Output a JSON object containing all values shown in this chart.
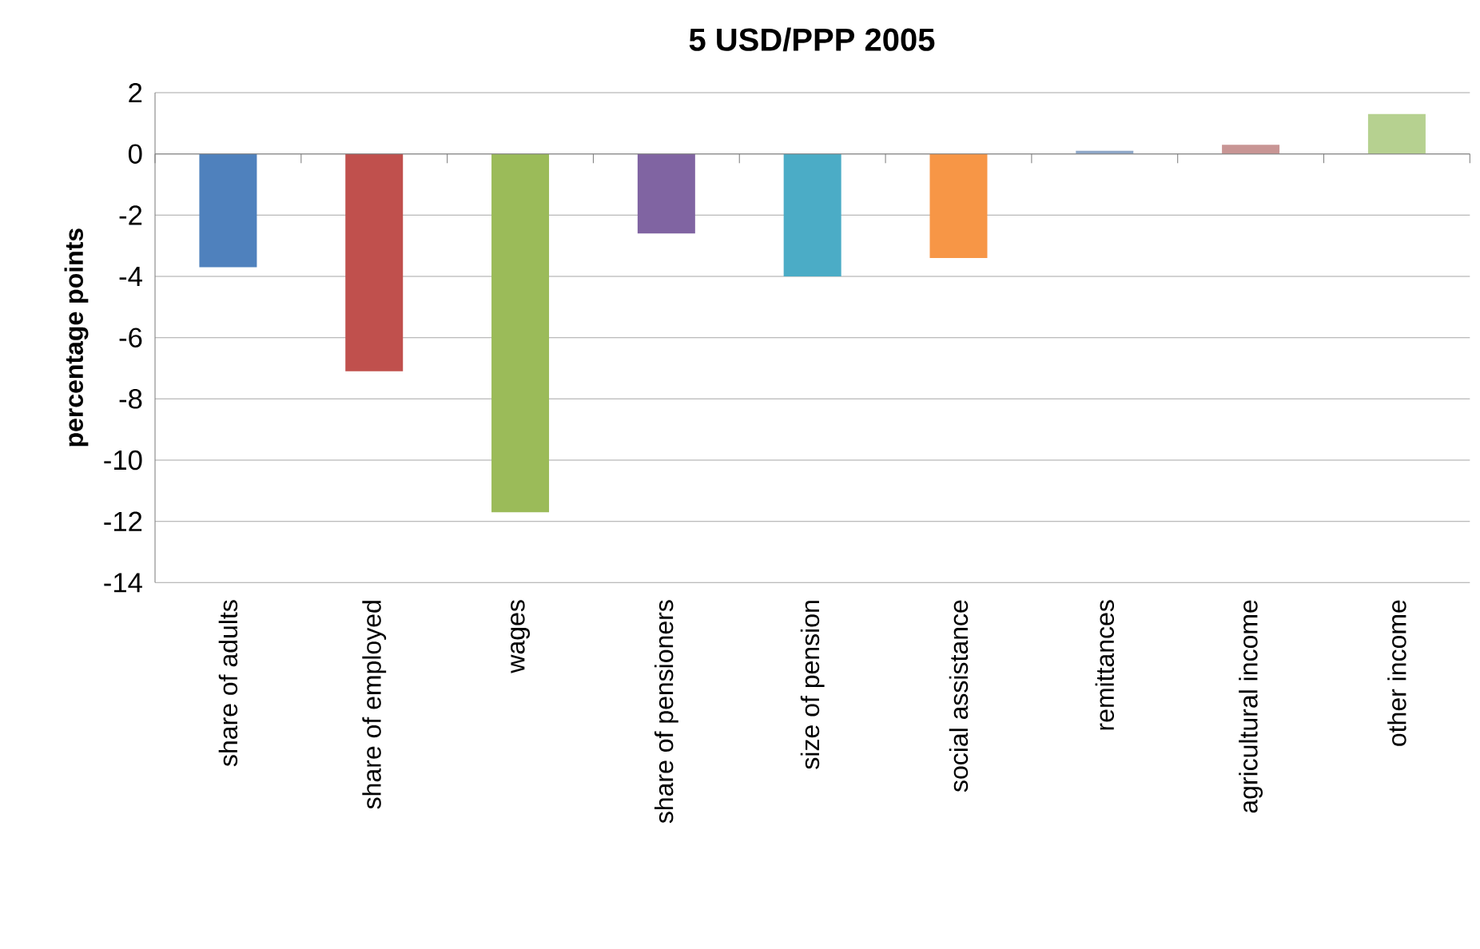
{
  "chart_data": {
    "type": "bar",
    "title": "5 USD/PPP 2005",
    "ylabel": "percentage points",
    "categories": [
      "share of adults",
      "share of employed",
      "wages",
      "share of pensioners",
      "size of pension",
      "social assistance",
      "remittances",
      "agricultural income",
      "other income"
    ],
    "values": [
      -3.7,
      -7.1,
      -11.7,
      -2.6,
      -4.0,
      -3.4,
      0.1,
      0.3,
      1.3
    ],
    "colors": [
      "#4f81bd",
      "#c0504d",
      "#9bbb59",
      "#8064a2",
      "#4bacc6",
      "#f79646",
      "#8fa8c8",
      "#c89594",
      "#b6d190"
    ],
    "ylim": [
      -14,
      2
    ],
    "yticks": [
      -14,
      -12,
      -10,
      -8,
      -6,
      -4,
      -2,
      0,
      2
    ],
    "grid": "y"
  }
}
